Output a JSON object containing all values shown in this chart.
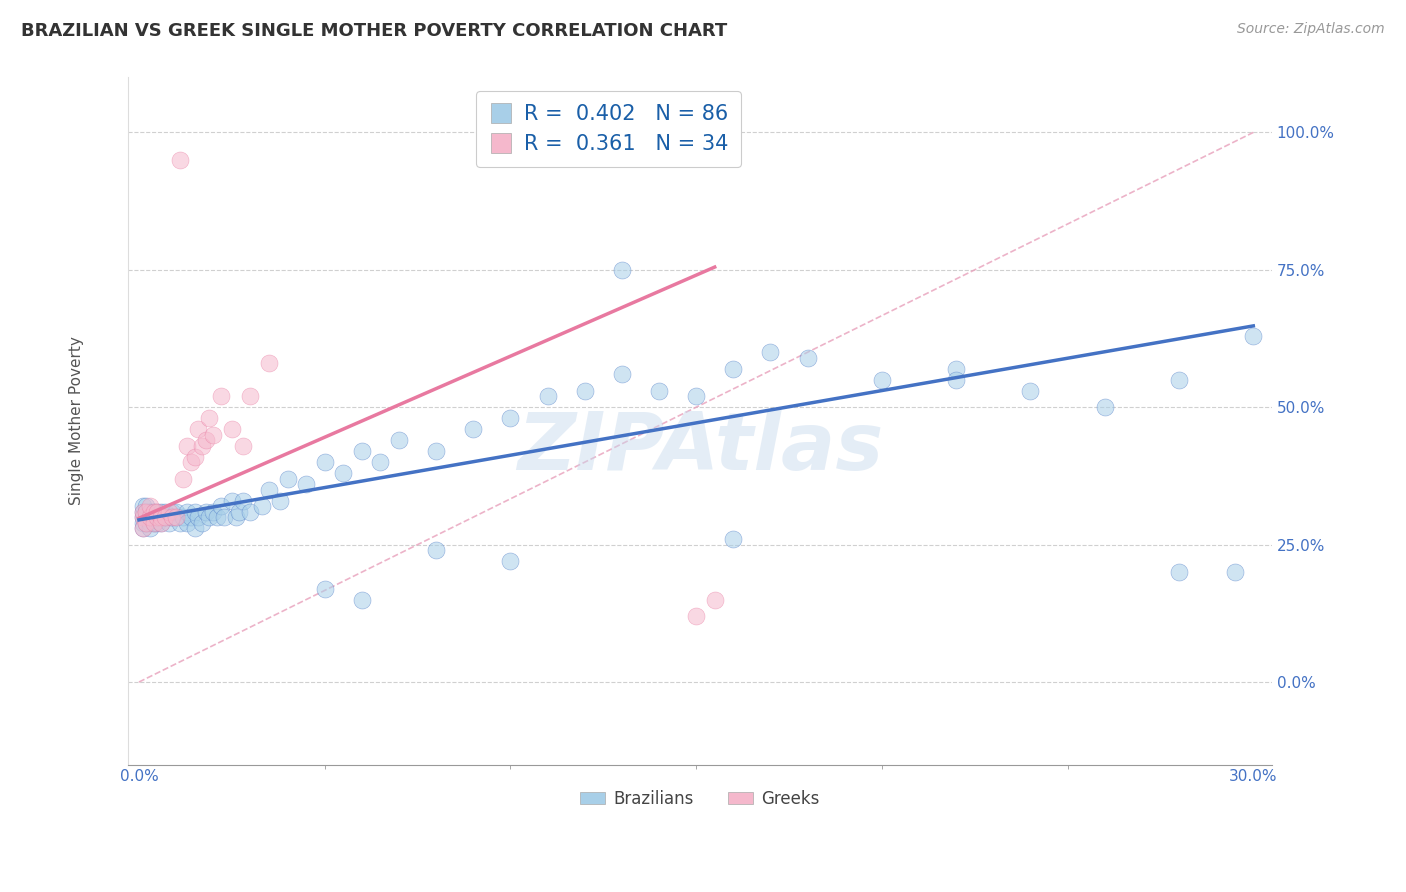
{
  "title": "BRAZILIAN VS GREEK SINGLE MOTHER POVERTY CORRELATION CHART",
  "source": "Source: ZipAtlas.com",
  "ylabel": "Single Mother Poverty",
  "xlim": [
    -0.003,
    0.305
  ],
  "ylim": [
    -0.15,
    1.1
  ],
  "xticks_show": [
    0.0,
    0.3
  ],
  "xticklabels_show": [
    "0.0%",
    "30.0%"
  ],
  "xticks_minor": [
    0.05,
    0.1,
    0.15,
    0.2,
    0.25
  ],
  "yticks": [
    0.0,
    0.25,
    0.5,
    0.75,
    1.0
  ],
  "yticklabels": [
    "0.0%",
    "25.0%",
    "50.0%",
    "75.0%",
    "100.0%"
  ],
  "blue_color": "#a8cfe8",
  "pink_color": "#f5b8cc",
  "blue_line_color": "#4472c4",
  "pink_line_color": "#e879a0",
  "diag_line_color": "#e8a0bb",
  "legend_R_blue": "0.402",
  "legend_N_blue": "86",
  "legend_R_pink": "0.361",
  "legend_N_pink": "34",
  "watermark": "ZIPAtlas",
  "blue_scatter_x": [
    0.001,
    0.001,
    0.001,
    0.001,
    0.001,
    0.002,
    0.002,
    0.002,
    0.002,
    0.003,
    0.003,
    0.003,
    0.003,
    0.004,
    0.004,
    0.004,
    0.005,
    0.005,
    0.005,
    0.006,
    0.006,
    0.006,
    0.007,
    0.007,
    0.008,
    0.008,
    0.009,
    0.009,
    0.01,
    0.01,
    0.011,
    0.012,
    0.013,
    0.013,
    0.014,
    0.015,
    0.015,
    0.016,
    0.017,
    0.018,
    0.019,
    0.02,
    0.021,
    0.022,
    0.023,
    0.025,
    0.026,
    0.027,
    0.028,
    0.03,
    0.033,
    0.035,
    0.038,
    0.04,
    0.045,
    0.05,
    0.055,
    0.06,
    0.065,
    0.07,
    0.08,
    0.09,
    0.1,
    0.11,
    0.12,
    0.13,
    0.14,
    0.15,
    0.16,
    0.18,
    0.2,
    0.22,
    0.24,
    0.26,
    0.28,
    0.295,
    0.3,
    0.13,
    0.17,
    0.05,
    0.06,
    0.08,
    0.1,
    0.16,
    0.22,
    0.28
  ],
  "blue_scatter_y": [
    0.3,
    0.31,
    0.29,
    0.32,
    0.28,
    0.31,
    0.3,
    0.29,
    0.32,
    0.3,
    0.31,
    0.29,
    0.28,
    0.31,
    0.3,
    0.29,
    0.3,
    0.31,
    0.29,
    0.3,
    0.31,
    0.29,
    0.3,
    0.31,
    0.3,
    0.29,
    0.31,
    0.3,
    0.3,
    0.31,
    0.29,
    0.3,
    0.31,
    0.29,
    0.3,
    0.31,
    0.28,
    0.3,
    0.29,
    0.31,
    0.3,
    0.31,
    0.3,
    0.32,
    0.3,
    0.33,
    0.3,
    0.31,
    0.33,
    0.31,
    0.32,
    0.35,
    0.33,
    0.37,
    0.36,
    0.4,
    0.38,
    0.42,
    0.4,
    0.44,
    0.42,
    0.46,
    0.48,
    0.52,
    0.53,
    0.56,
    0.53,
    0.52,
    0.57,
    0.59,
    0.55,
    0.57,
    0.53,
    0.5,
    0.2,
    0.2,
    0.63,
    0.75,
    0.6,
    0.17,
    0.15,
    0.24,
    0.22,
    0.26,
    0.55,
    0.55
  ],
  "pink_scatter_x": [
    0.001,
    0.001,
    0.001,
    0.002,
    0.002,
    0.003,
    0.003,
    0.004,
    0.004,
    0.005,
    0.005,
    0.006,
    0.006,
    0.007,
    0.008,
    0.009,
    0.01,
    0.011,
    0.012,
    0.013,
    0.014,
    0.015,
    0.016,
    0.017,
    0.018,
    0.019,
    0.02,
    0.022,
    0.025,
    0.028,
    0.03,
    0.035,
    0.15,
    0.155
  ],
  "pink_scatter_y": [
    0.3,
    0.31,
    0.28,
    0.31,
    0.29,
    0.3,
    0.32,
    0.31,
    0.29,
    0.3,
    0.31,
    0.3,
    0.29,
    0.3,
    0.31,
    0.3,
    0.3,
    0.95,
    0.37,
    0.43,
    0.4,
    0.41,
    0.46,
    0.43,
    0.44,
    0.48,
    0.45,
    0.52,
    0.46,
    0.43,
    0.52,
    0.58,
    0.12,
    0.15
  ],
  "blue_line": {
    "x0": 0.0,
    "x1": 0.3,
    "y0": 0.295,
    "y1": 0.648
  },
  "pink_line": {
    "x0": 0.0,
    "x1": 0.155,
    "y0": 0.298,
    "y1": 0.755
  },
  "diag_line": {
    "x0": 0.0,
    "x1": 0.3,
    "y0": 0.0,
    "y1": 1.0
  }
}
